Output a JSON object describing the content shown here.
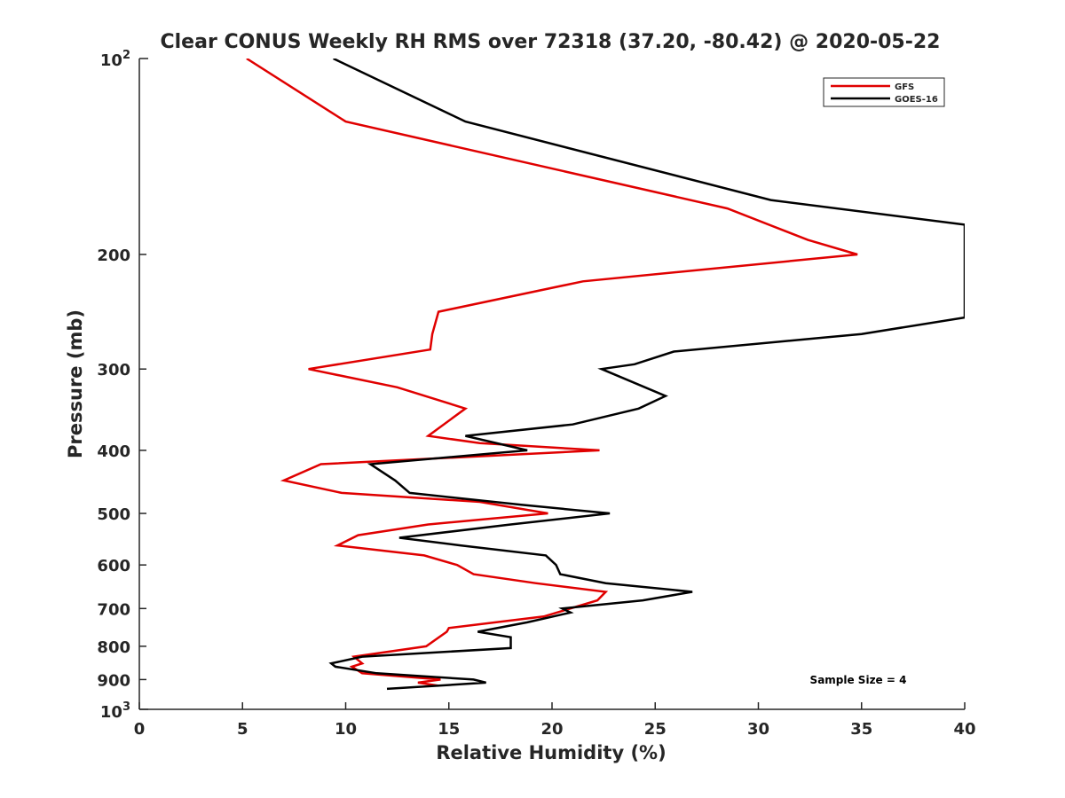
{
  "chart_data": {
    "type": "line",
    "title": "Clear CONUS Weekly RH RMS over 72318 (37.20, -80.42) @ 2020-05-22",
    "xlabel": "Relative Humidity (%)",
    "ylabel": "Pressure (mb)",
    "xlim": [
      0,
      40
    ],
    "ylim": [
      100,
      1000
    ],
    "y_scale": "log",
    "y_reversed": true,
    "x_ticks": [
      0,
      5,
      10,
      15,
      20,
      25,
      30,
      35,
      40
    ],
    "x_tick_labels": [
      "0",
      "5",
      "10",
      "15",
      "20",
      "25",
      "30",
      "35",
      "40"
    ],
    "y_ticks": [
      200,
      300,
      400,
      500,
      600,
      700,
      800,
      900
    ],
    "y_tick_labels": [
      "200",
      "300",
      "400",
      "500",
      "600",
      "700",
      "800",
      "900"
    ],
    "y_end_labels": {
      "top": {
        "base": "10",
        "exp": "2"
      },
      "bottom": {
        "base": "10",
        "exp": "3"
      }
    },
    "grid": false,
    "legend": {
      "position": "top-right",
      "entries": [
        "GFS",
        "GOES-16"
      ]
    },
    "annotation": "Sample Size = 4",
    "series": [
      {
        "name": "GFS",
        "color": "#e00000",
        "points": [
          [
            5.2,
            100
          ],
          [
            10.0,
            125
          ],
          [
            28.5,
            170
          ],
          [
            32.4,
            190
          ],
          [
            34.8,
            200
          ],
          [
            21.5,
            220
          ],
          [
            14.5,
            245
          ],
          [
            14.2,
            265
          ],
          [
            14.1,
            280
          ],
          [
            8.2,
            300
          ],
          [
            12.5,
            320
          ],
          [
            15.8,
            345
          ],
          [
            14.0,
            380
          ],
          [
            16.5,
            390
          ],
          [
            22.3,
            400
          ],
          [
            8.8,
            420
          ],
          [
            7.0,
            445
          ],
          [
            9.8,
            465
          ],
          [
            16.5,
            480
          ],
          [
            19.8,
            500
          ],
          [
            14.0,
            520
          ],
          [
            10.6,
            540
          ],
          [
            9.6,
            560
          ],
          [
            13.8,
            580
          ],
          [
            15.4,
            600
          ],
          [
            16.2,
            620
          ],
          [
            19.2,
            640
          ],
          [
            22.6,
            660
          ],
          [
            22.2,
            680
          ],
          [
            19.6,
            720
          ],
          [
            15.0,
            750
          ],
          [
            14.9,
            760
          ],
          [
            13.9,
            800
          ],
          [
            10.4,
            830
          ],
          [
            10.8,
            850
          ],
          [
            10.3,
            860
          ],
          [
            10.8,
            880
          ],
          [
            14.6,
            900
          ],
          [
            13.5,
            910
          ],
          [
            14.5,
            920
          ]
        ]
      },
      {
        "name": "GOES-16",
        "color": "#000000",
        "points": [
          [
            9.4,
            100
          ],
          [
            15.8,
            125
          ],
          [
            30.6,
            165
          ],
          [
            40.0,
            180
          ],
          [
            40.0,
            250
          ],
          [
            35.0,
            265
          ],
          [
            25.9,
            282
          ],
          [
            24.0,
            295
          ],
          [
            22.4,
            300
          ],
          [
            25.5,
            330
          ],
          [
            24.2,
            345
          ],
          [
            21.0,
            365
          ],
          [
            15.8,
            380
          ],
          [
            18.8,
            400
          ],
          [
            11.2,
            420
          ],
          [
            12.4,
            445
          ],
          [
            13.1,
            465
          ],
          [
            18.5,
            485
          ],
          [
            22.8,
            500
          ],
          [
            18.0,
            520
          ],
          [
            12.6,
            545
          ],
          [
            15.6,
            560
          ],
          [
            19.7,
            580
          ],
          [
            20.2,
            600
          ],
          [
            20.4,
            620
          ],
          [
            22.6,
            640
          ],
          [
            26.8,
            660
          ],
          [
            24.4,
            680
          ],
          [
            20.5,
            700
          ],
          [
            20.9,
            710
          ],
          [
            18.8,
            735
          ],
          [
            16.4,
            760
          ],
          [
            18.0,
            775
          ],
          [
            18.0,
            805
          ],
          [
            10.8,
            830
          ],
          [
            9.3,
            850
          ],
          [
            9.5,
            860
          ],
          [
            11.5,
            880
          ],
          [
            16.2,
            900
          ],
          [
            16.8,
            910
          ],
          [
            12.0,
            930
          ]
        ]
      }
    ]
  }
}
